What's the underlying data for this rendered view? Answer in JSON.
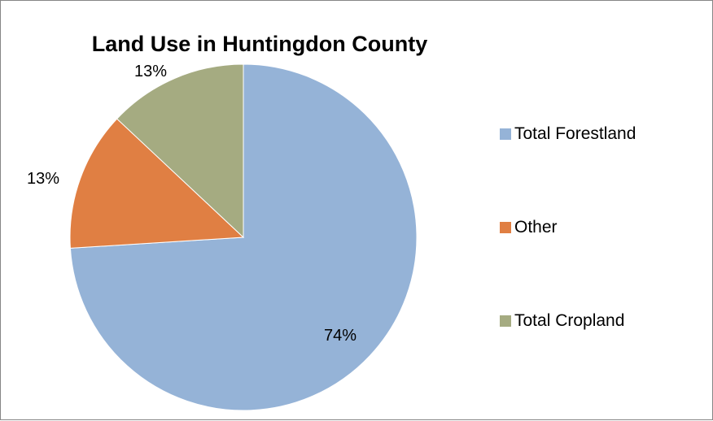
{
  "chart_data": {
    "type": "pie",
    "title": "Land Use in Huntingdon County",
    "slices": [
      {
        "label": "Total Forestland",
        "value": 74,
        "display": "74%",
        "color": "#95b3d7"
      },
      {
        "label": "Other",
        "value": 13,
        "display": "13%",
        "color": "#e07f43"
      },
      {
        "label": "Total Cropland",
        "value": 13,
        "display": "13%",
        "color": "#a5ab81"
      }
    ],
    "legend_position": "right"
  }
}
